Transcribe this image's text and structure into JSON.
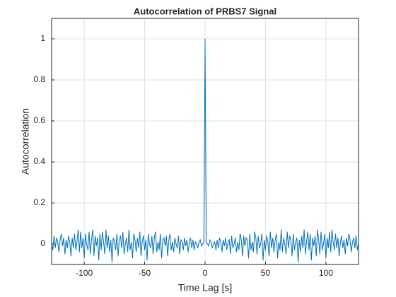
{
  "chart_data": {
    "type": "line",
    "title": "Autocorrelation of PRBS7 Signal",
    "xlabel": "Time Lag [s]",
    "ylabel": "Autocorrelation",
    "color": "#0072bd",
    "grid": true,
    "xlim": [
      -127,
      127
    ],
    "ylim": [
      -0.1,
      1.1
    ],
    "xticks": [
      -100,
      -50,
      0,
      50,
      100
    ],
    "yticks": [
      0,
      0.2,
      0.4,
      0.6,
      0.8,
      1
    ],
    "x": [
      -127,
      -126,
      -125,
      -124,
      -123,
      -122,
      -121,
      -120,
      -119,
      -118,
      -117,
      -116,
      -115,
      -114,
      -113,
      -112,
      -111,
      -110,
      -109,
      -108,
      -107,
      -106,
      -105,
      -104,
      -103,
      -102,
      -101,
      -100,
      -99,
      -98,
      -97,
      -96,
      -95,
      -94,
      -93,
      -92,
      -91,
      -90,
      -89,
      -88,
      -87,
      -86,
      -85,
      -84,
      -83,
      -82,
      -81,
      -80,
      -79,
      -78,
      -77,
      -76,
      -75,
      -74,
      -73,
      -72,
      -71,
      -70,
      -69,
      -68,
      -67,
      -66,
      -65,
      -64,
      -63,
      -62,
      -61,
      -60,
      -59,
      -58,
      -57,
      -56,
      -55,
      -54,
      -53,
      -52,
      -51,
      -50,
      -49,
      -48,
      -47,
      -46,
      -45,
      -44,
      -43,
      -42,
      -41,
      -40,
      -39,
      -38,
      -37,
      -36,
      -35,
      -34,
      -33,
      -32,
      -31,
      -30,
      -29,
      -28,
      -27,
      -26,
      -25,
      -24,
      -23,
      -22,
      -21,
      -20,
      -19,
      -18,
      -17,
      -16,
      -15,
      -14,
      -13,
      -12,
      -11,
      -10,
      -9,
      -8,
      -7,
      -6,
      -5,
      -4,
      -3,
      -2,
      -1,
      0,
      1,
      2,
      3,
      4,
      5,
      6,
      7,
      8,
      9,
      10,
      11,
      12,
      13,
      14,
      15,
      16,
      17,
      18,
      19,
      20,
      21,
      22,
      23,
      24,
      25,
      26,
      27,
      28,
      29,
      30,
      31,
      32,
      33,
      34,
      35,
      36,
      37,
      38,
      39,
      40,
      41,
      42,
      43,
      44,
      45,
      46,
      47,
      48,
      49,
      50,
      51,
      52,
      53,
      54,
      55,
      56,
      57,
      58,
      59,
      60,
      61,
      62,
      63,
      64,
      65,
      66,
      67,
      68,
      69,
      70,
      71,
      72,
      73,
      74,
      75,
      76,
      77,
      78,
      79,
      80,
      81,
      82,
      83,
      84,
      85,
      86,
      87,
      88,
      89,
      90,
      91,
      92,
      93,
      94,
      95,
      96,
      97,
      98,
      99,
      100,
      101,
      102,
      103,
      104,
      105,
      106,
      107,
      108,
      109,
      110,
      111,
      112,
      113,
      114,
      115,
      116,
      117,
      118,
      119,
      120,
      121,
      122,
      123,
      124,
      125,
      126,
      127
    ],
    "values": [
      0.0,
      -0.03,
      0.04,
      -0.02,
      0.03,
      0.01,
      -0.04,
      0.02,
      0.05,
      -0.01,
      0.03,
      -0.05,
      0.02,
      -0.02,
      0.04,
      0.01,
      -0.06,
      0.03,
      -0.02,
      0.05,
      -0.03,
      0.01,
      0.07,
      -0.04,
      0.06,
      -0.02,
      0.03,
      -0.07,
      0.05,
      0.0,
      -0.03,
      0.06,
      -0.05,
      0.02,
      0.07,
      -0.06,
      0.04,
      -0.01,
      0.03,
      -0.08,
      0.05,
      -0.03,
      0.06,
      0.01,
      -0.05,
      0.07,
      -0.02,
      0.04,
      -0.04,
      0.02,
      -0.09,
      0.03,
      0.01,
      -0.03,
      0.05,
      -0.06,
      0.02,
      0.04,
      -0.02,
      0.06,
      -0.05,
      0.0,
      0.03,
      -0.04,
      0.07,
      -0.03,
      0.01,
      -0.07,
      0.05,
      0.02,
      -0.04,
      0.03,
      -0.02,
      0.06,
      -0.06,
      0.01,
      0.04,
      -0.03,
      0.02,
      -0.08,
      0.05,
      0.0,
      -0.02,
      0.04,
      -0.05,
      0.03,
      0.06,
      -0.04,
      0.01,
      -0.03,
      0.05,
      -0.07,
      0.02,
      0.03,
      -0.01,
      0.04,
      -0.06,
      0.02,
      0.05,
      -0.03,
      0.01,
      -0.04,
      0.03,
      0.0,
      -0.02,
      0.04,
      -0.05,
      0.02,
      0.01,
      -0.03,
      0.03,
      -0.01,
      0.02,
      -0.04,
      0.01,
      0.03,
      -0.02,
      0.02,
      -0.03,
      0.01,
      0.0,
      -0.02,
      0.01,
      0.02,
      -0.01,
      0.0,
      0.01,
      1,
      0.01,
      0.0,
      -0.01,
      0.02,
      0.01,
      -0.02,
      0.0,
      0.01,
      -0.03,
      0.02,
      -0.02,
      0.03,
      0.01,
      -0.04,
      0.02,
      -0.01,
      0.03,
      -0.03,
      0.01,
      0.02,
      -0.05,
      0.04,
      -0.02,
      0.0,
      0.03,
      -0.04,
      0.01,
      -0.03,
      0.05,
      0.02,
      -0.06,
      0.04,
      -0.01,
      0.03,
      0.02,
      -0.07,
      0.05,
      -0.03,
      0.01,
      -0.04,
      0.06,
      0.03,
      -0.05,
      0.04,
      -0.02,
      0.0,
      0.05,
      -0.08,
      0.02,
      -0.03,
      0.04,
      0.01,
      -0.06,
      0.06,
      -0.02,
      0.03,
      -0.04,
      0.02,
      0.05,
      -0.07,
      0.01,
      -0.03,
      0.07,
      -0.04,
      0.03,
      0.0,
      -0.05,
      0.06,
      -0.02,
      0.04,
      0.02,
      -0.06,
      0.05,
      -0.03,
      0.01,
      0.03,
      -0.09,
      0.02,
      -0.04,
      0.04,
      -0.02,
      0.07,
      -0.05,
      0.01,
      0.06,
      -0.03,
      0.05,
      -0.08,
      0.03,
      -0.01,
      0.04,
      -0.06,
      0.07,
      0.02,
      -0.05,
      0.06,
      -0.03,
      0.0,
      0.05,
      -0.07,
      0.03,
      -0.02,
      0.06,
      -0.04,
      0.07,
      0.01,
      -0.03,
      0.05,
      -0.02,
      0.03,
      -0.06,
      0.01,
      0.04,
      -0.02,
      0.02,
      -0.05,
      0.03,
      -0.01,
      0.05,
      0.02,
      -0.04,
      0.01,
      0.03,
      -0.02,
      0.04,
      -0.03,
      0.0
    ]
  }
}
